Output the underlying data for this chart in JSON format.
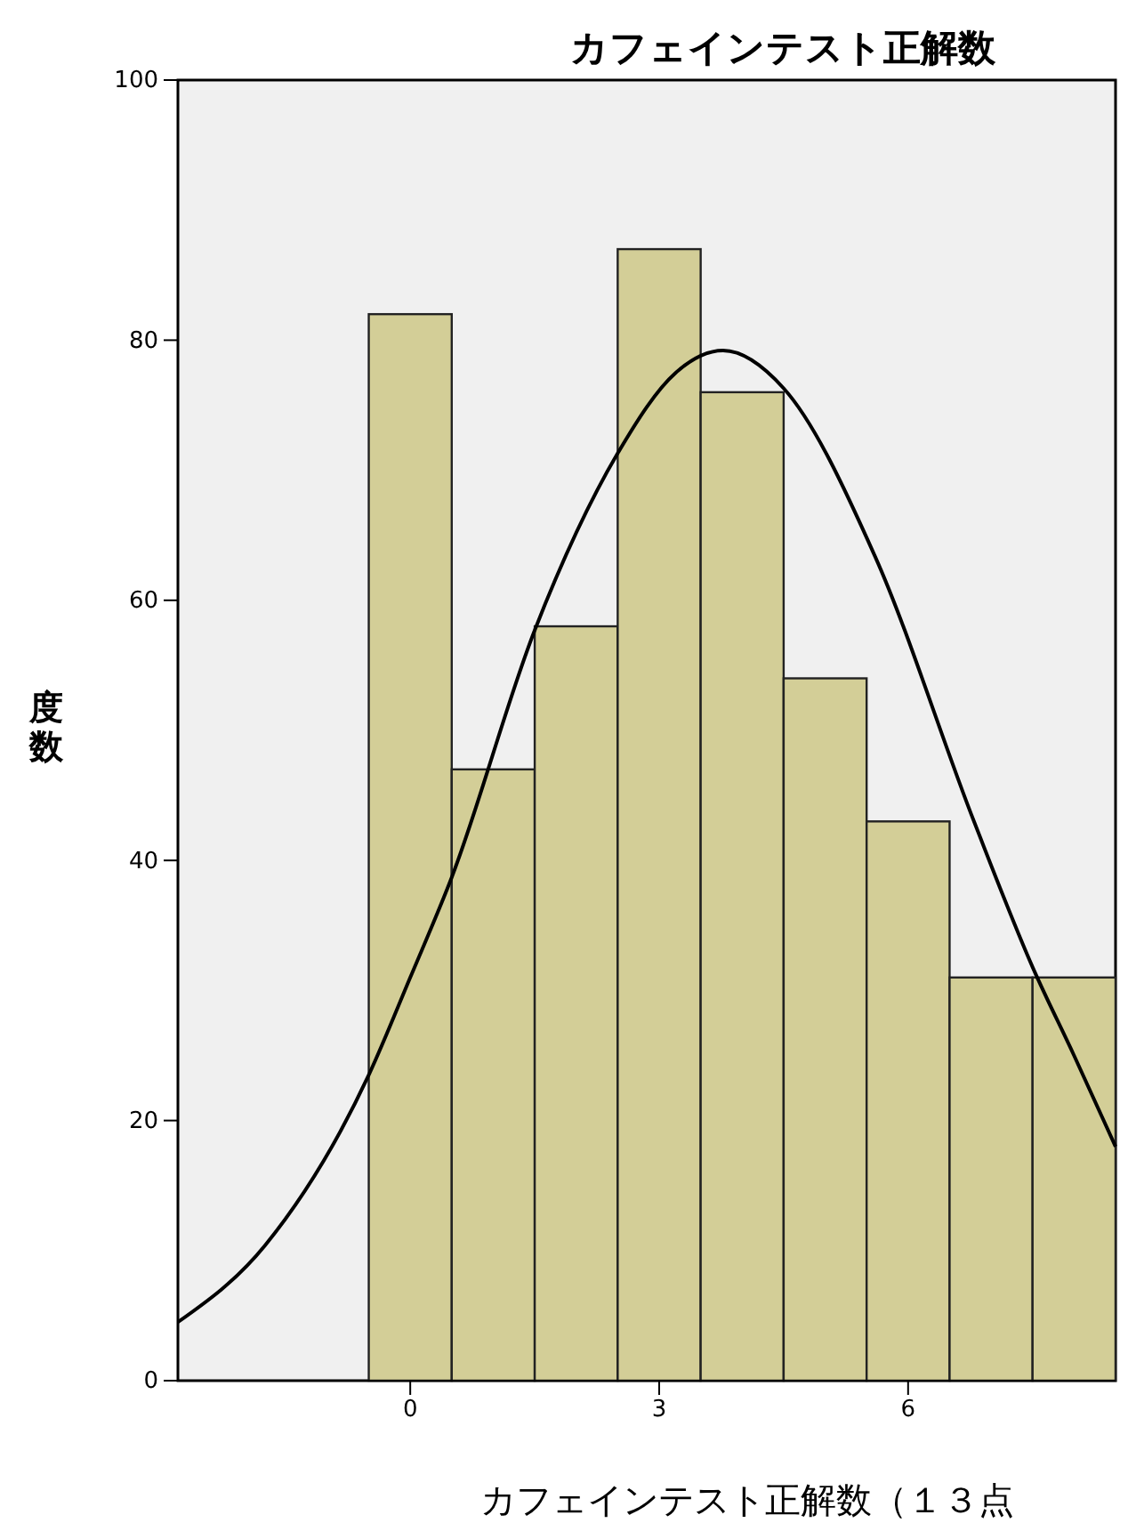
{
  "chart_data": {
    "type": "histogram",
    "title": "カフェインテスト正解数",
    "xlabel": "カフェインテスト正解数（１３点",
    "ylabel": "度数",
    "bins": [
      -0.5,
      0.5,
      1.5,
      2.5,
      3.5,
      4.5,
      5.5,
      6.5,
      7.5,
      8.5
    ],
    "values": [
      82,
      47,
      58,
      87,
      76,
      54,
      43,
      31,
      31
    ],
    "color": "#d3ce97",
    "series": [
      {
        "type": "line",
        "color": "#000000",
        "x": [
          -2.8,
          -1.75,
          -0.5,
          0,
          0.5,
          1.5,
          2.5,
          3.2,
          3.77,
          4.5,
          5.6,
          6.8,
          7.5,
          8.0,
          8.5
        ],
        "values": [
          4.5,
          10.4,
          23.5,
          31,
          38.7,
          57.7,
          71.3,
          77.5,
          79.2,
          76.3,
          63.4,
          42.9,
          31.8,
          25,
          18
        ]
      }
    ],
    "xlim": [
      -2.8,
      8.5
    ],
    "ylim": [
      0,
      100
    ],
    "xticks": [
      0,
      3,
      6
    ],
    "yticks": [
      0,
      20,
      40,
      60,
      80,
      100
    ],
    "grid": false,
    "marker": "none",
    "line_style": "solid"
  }
}
